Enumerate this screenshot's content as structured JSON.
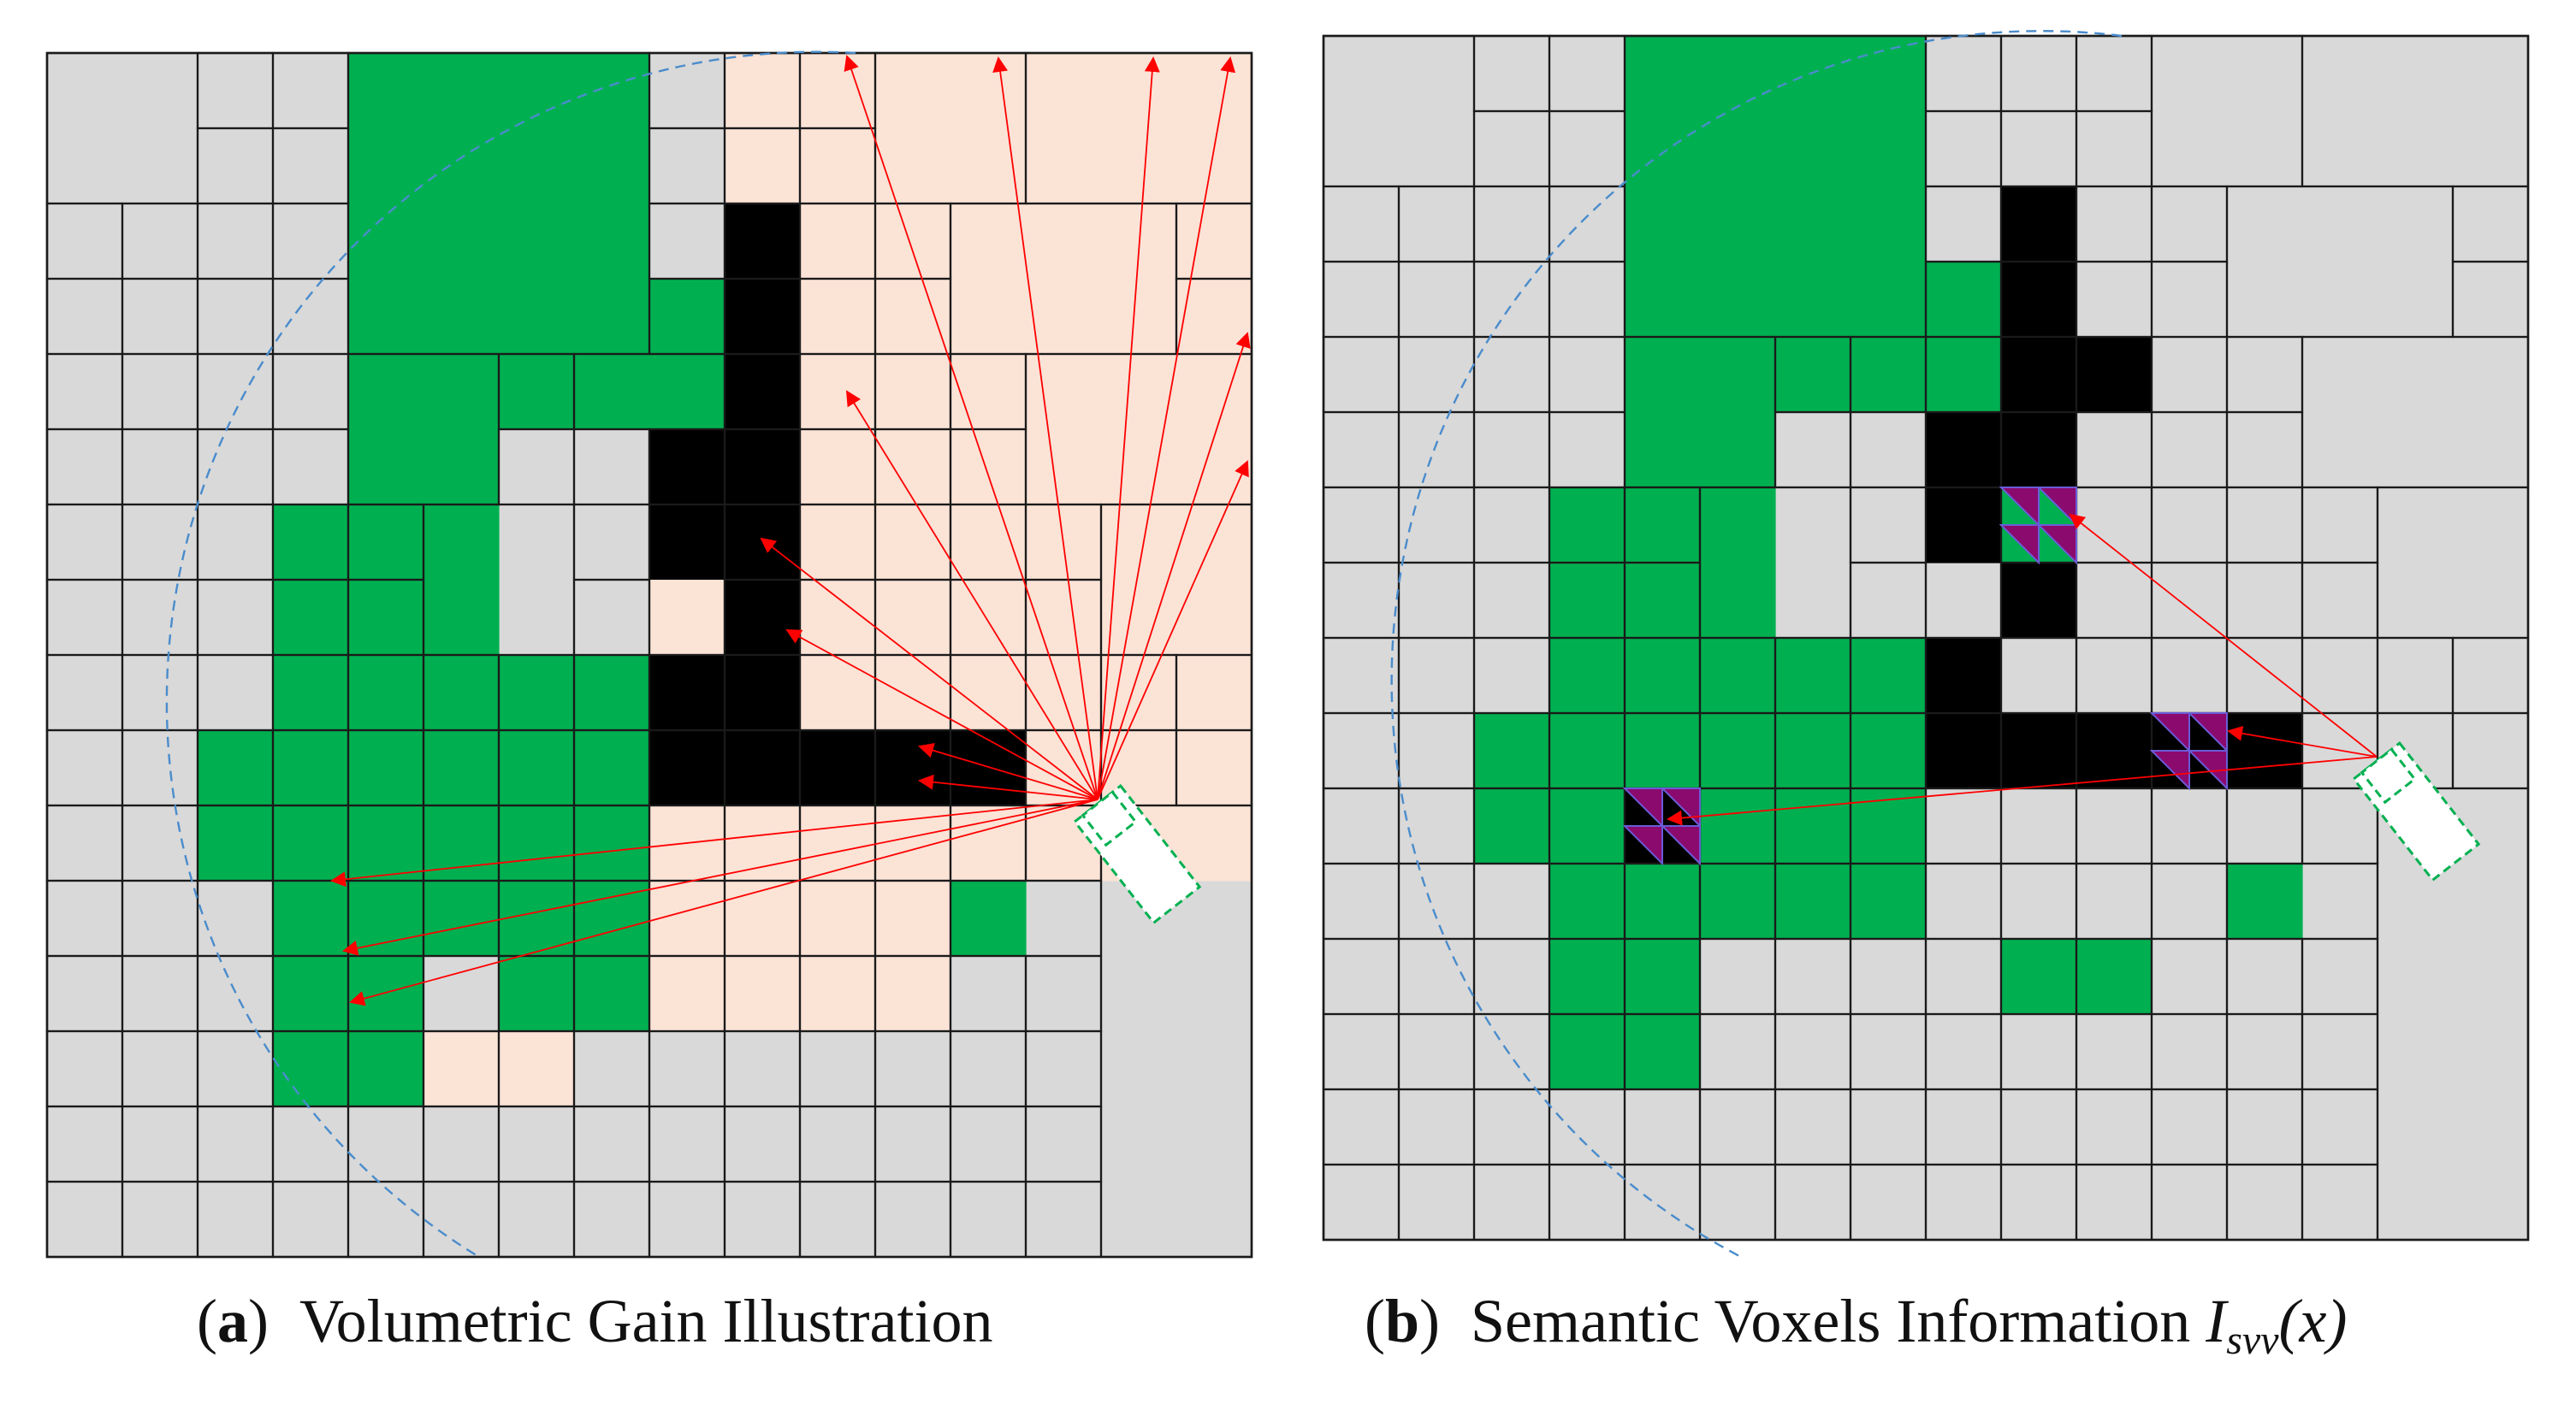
{
  "colors": {
    "unknown": "#d9d9d9",
    "free": "#00b050",
    "occupied": "#000000",
    "gain": "#fbe3d6",
    "semantic": "#8b0a6e",
    "ray": "#ff0000",
    "fov": "#4a8ccc",
    "camera": "#00b050",
    "line": "#1a1a1a"
  },
  "panel_a": {
    "caption_letter": "a",
    "caption_text": "Volumetric Gain Illustration"
  },
  "panel_b": {
    "caption_letter": "b",
    "caption_text": "Semantic Voxels Information",
    "caption_math": "I",
    "caption_sub": "svv",
    "caption_arg": "(x)"
  }
}
